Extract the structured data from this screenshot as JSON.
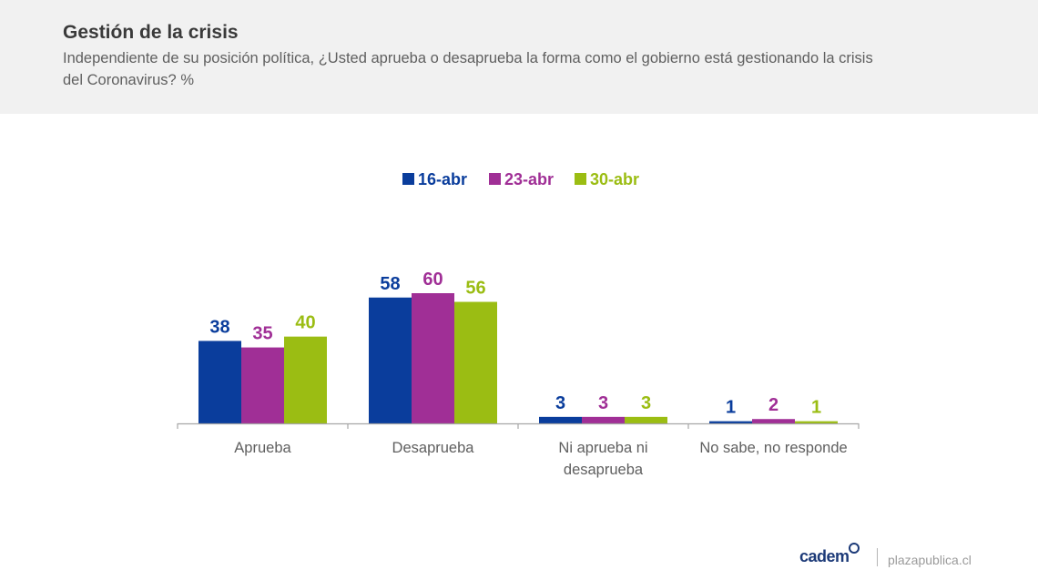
{
  "header": {
    "title": "Gestión de la crisis",
    "subtitle": "Independiente de su posición política, ¿Usted aprueba o desaprueba la forma como el gobierno está gestionando la crisis del Coronavirus? %"
  },
  "chart_data": {
    "type": "bar",
    "categories": [
      [
        "Aprueba"
      ],
      [
        "Desaprueba"
      ],
      [
        "Ni aprueba ni",
        "desaprueba"
      ],
      [
        "No sabe, no responde"
      ]
    ],
    "series": [
      {
        "name": "16-abr",
        "color": "#0a3d9c",
        "values": [
          38,
          58,
          3,
          1
        ]
      },
      {
        "name": "23-abr",
        "color": "#a02f96",
        "values": [
          35,
          60,
          3,
          2
        ]
      },
      {
        "name": "30-abr",
        "color": "#9bbd13",
        "values": [
          40,
          56,
          3,
          1
        ]
      }
    ],
    "ylim": [
      0,
      60
    ],
    "legend": "top-center",
    "grid": false,
    "data_labels": true
  },
  "footer": {
    "logo_text": "cadem",
    "site": "plazapublica.cl"
  }
}
